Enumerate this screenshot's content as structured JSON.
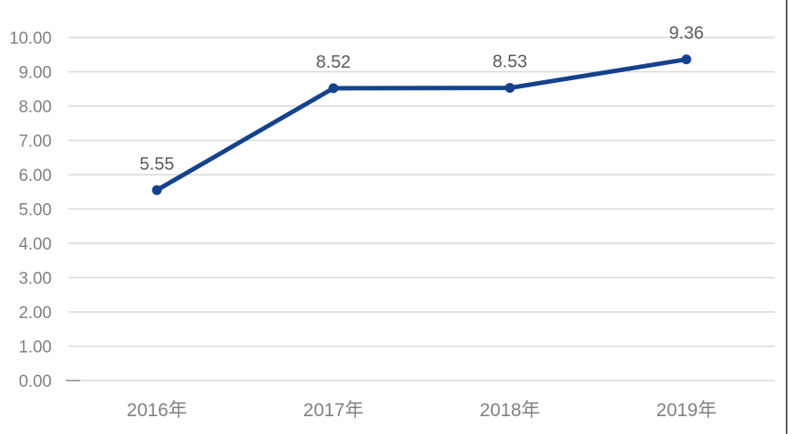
{
  "chart_data": {
    "type": "line",
    "title": "",
    "categories": [
      "2016年",
      "2017年",
      "2018年",
      "2019年"
    ],
    "series": [
      {
        "name": "value",
        "values": [
          5.55,
          8.52,
          8.53,
          9.36
        ],
        "data_labels": [
          "5.55",
          "8.52",
          "8.53",
          "9.36"
        ]
      }
    ],
    "xlabel": "",
    "ylabel": "",
    "ylim": [
      0,
      10
    ],
    "y_tick_interval": 1,
    "y_tick_labels": [
      "0.00",
      "1.00",
      "2.00",
      "3.00",
      "4.00",
      "5.00",
      "6.00",
      "7.00",
      "8.00",
      "9.00",
      "10.00"
    ],
    "grid": true,
    "legend": false,
    "colors": {
      "line": "#15428C",
      "marker": "#15428C",
      "gridline": "#D9D9D9",
      "zero_tick": "#A6A6A6",
      "axis_label": "#808080",
      "data_label": "#595959",
      "right_edge_line": "#262626",
      "background": "#FFFFFF"
    }
  }
}
